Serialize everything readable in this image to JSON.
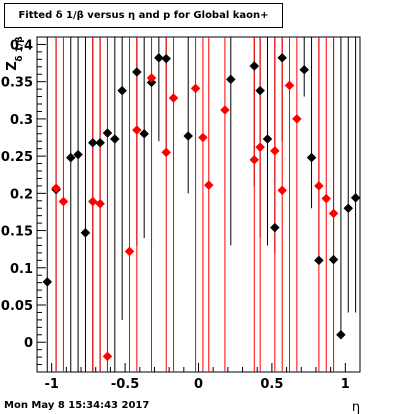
{
  "chart_data": {
    "type": "scatter",
    "title": "Fitted δ 1/β versus η and p for Global kaon+",
    "xlabel": "η",
    "ylabel": "Z_{δ 1/β}",
    "xlim": [
      -1.1,
      1.1
    ],
    "ylim": [
      -0.04,
      0.41
    ],
    "x_ticks": [
      "-1",
      "-0.5",
      "0",
      "0.5",
      "1"
    ],
    "y_ticks": [
      "0",
      "0.05",
      "0.1",
      "0.15",
      "0.2",
      "0.25",
      "0.3",
      "0.35",
      "0.4"
    ],
    "grid": false,
    "series": [
      {
        "color": "#000000",
        "points": [
          {
            "x": -1.03,
            "y": 0.081,
            "err_lo": 0.121,
            "err_hi": 0.329
          },
          {
            "x": -0.97,
            "y": 0.205,
            "err_lo": 0.245,
            "err_hi": 0.205
          },
          {
            "x": -0.87,
            "y": 0.248,
            "err_lo": 0.288,
            "err_hi": 0.162
          },
          {
            "x": -0.82,
            "y": 0.252,
            "err_lo": 0.292,
            "err_hi": 0.158
          },
          {
            "x": -0.77,
            "y": 0.147,
            "err_lo": 0.187,
            "err_hi": 0.263
          },
          {
            "x": -0.72,
            "y": 0.268,
            "err_lo": 0.308,
            "err_hi": 0.142
          },
          {
            "x": -0.67,
            "y": 0.268,
            "err_lo": 0.308,
            "err_hi": 0.142
          },
          {
            "x": -0.62,
            "y": 0.281,
            "err_lo": 0.321,
            "err_hi": 0.129
          },
          {
            "x": -0.57,
            "y": 0.273,
            "err_lo": 0.313,
            "err_hi": 0.137
          },
          {
            "x": -0.52,
            "y": 0.338,
            "err_lo": 0.308,
            "err_hi": 0.072
          },
          {
            "x": -0.42,
            "y": 0.363,
            "err_lo": 0.233,
            "err_hi": 0.047
          },
          {
            "x": -0.37,
            "y": 0.28,
            "err_lo": 0.14,
            "err_hi": 0.13
          },
          {
            "x": -0.32,
            "y": 0.349,
            "err_lo": 0.219,
            "err_hi": 0.061
          },
          {
            "x": -0.27,
            "y": 0.382,
            "err_lo": 0.112,
            "err_hi": 0.028
          },
          {
            "x": -0.22,
            "y": 0.381,
            "err_lo": 0.121,
            "err_hi": 0.029
          },
          {
            "x": -0.07,
            "y": 0.277,
            "err_lo": 0.077,
            "err_hi": 0.133
          },
          {
            "x": 0.22,
            "y": 0.353,
            "err_lo": 0.223,
            "err_hi": 0.057
          },
          {
            "x": 0.38,
            "y": 0.371,
            "err_lo": 0.161,
            "err_hi": 0.039
          },
          {
            "x": 0.42,
            "y": 0.338,
            "err_lo": 0.198,
            "err_hi": 0.072
          },
          {
            "x": 0.47,
            "y": 0.273,
            "err_lo": 0.143,
            "err_hi": 0.137
          },
          {
            "x": 0.52,
            "y": 0.154,
            "err_lo": 0.034,
            "err_hi": 0.256
          },
          {
            "x": 0.57,
            "y": 0.382,
            "err_lo": 0.112,
            "err_hi": 0.028
          },
          {
            "x": 0.72,
            "y": 0.366,
            "err_lo": 0.036,
            "err_hi": 0.044
          },
          {
            "x": 0.77,
            "y": 0.248,
            "err_lo": 0.068,
            "err_hi": 0.162
          },
          {
            "x": 0.82,
            "y": 0.11,
            "err_lo": 0.0,
            "err_hi": 0.3
          },
          {
            "x": 0.92,
            "y": 0.111,
            "err_lo": 0.0,
            "err_hi": 0.299
          },
          {
            "x": 0.97,
            "y": 0.01,
            "err_lo": 0.0,
            "err_hi": 0.4
          },
          {
            "x": 1.02,
            "y": 0.18,
            "err_lo": 0.14,
            "err_hi": 0.23
          },
          {
            "x": 1.07,
            "y": 0.194,
            "err_lo": 0.154,
            "err_hi": 0.216
          }
        ]
      },
      {
        "color": "#ff0000",
        "points": [
          {
            "x": -0.97,
            "y": 0.207,
            "err_lo": 0.247,
            "err_hi": 0.203
          },
          {
            "x": -0.92,
            "y": 0.189,
            "err_lo": 0.229,
            "err_hi": 0.221
          },
          {
            "x": -0.72,
            "y": 0.189,
            "err_lo": 0.229,
            "err_hi": 0.221
          },
          {
            "x": -0.67,
            "y": 0.186,
            "err_lo": 0.226,
            "err_hi": 0.224
          },
          {
            "x": -0.62,
            "y": -0.019,
            "err_lo": 0.021,
            "err_hi": 0.429
          },
          {
            "x": -0.47,
            "y": 0.122,
            "err_lo": 0.162,
            "err_hi": 0.288
          },
          {
            "x": -0.42,
            "y": 0.285,
            "err_lo": 0.325,
            "err_hi": 0.125
          },
          {
            "x": -0.32,
            "y": 0.355,
            "err_lo": 0.395,
            "err_hi": 0.055
          },
          {
            "x": -0.22,
            "y": 0.255,
            "err_lo": 0.295,
            "err_hi": 0.155
          },
          {
            "x": -0.17,
            "y": 0.328,
            "err_lo": 0.368,
            "err_hi": 0.082
          },
          {
            "x": -0.02,
            "y": 0.341,
            "err_lo": 0.381,
            "err_hi": 0.069
          },
          {
            "x": 0.03,
            "y": 0.275,
            "err_lo": 0.315,
            "err_hi": 0.135
          },
          {
            "x": 0.07,
            "y": 0.211,
            "err_lo": 0.251,
            "err_hi": 0.199
          },
          {
            "x": 0.18,
            "y": 0.312,
            "err_lo": 0.352,
            "err_hi": 0.098
          },
          {
            "x": 0.38,
            "y": 0.245,
            "err_lo": 0.285,
            "err_hi": 0.165
          },
          {
            "x": 0.42,
            "y": 0.262,
            "err_lo": 0.302,
            "err_hi": 0.148
          },
          {
            "x": 0.52,
            "y": 0.257,
            "err_lo": 0.297,
            "err_hi": 0.153
          },
          {
            "x": 0.57,
            "y": 0.204,
            "err_lo": 0.244,
            "err_hi": 0.206
          },
          {
            "x": 0.62,
            "y": 0.345,
            "err_lo": 0.385,
            "err_hi": 0.065
          },
          {
            "x": 0.67,
            "y": 0.3,
            "err_lo": 0.34,
            "err_hi": 0.11
          },
          {
            "x": 0.82,
            "y": 0.21,
            "err_lo": 0.25,
            "err_hi": 0.2
          },
          {
            "x": 0.87,
            "y": 0.193,
            "err_lo": 0.233,
            "err_hi": 0.217
          },
          {
            "x": 0.92,
            "y": 0.173,
            "err_lo": 0.213,
            "err_hi": 0.237
          }
        ]
      }
    ]
  },
  "footer": {
    "date": "Mon May  8 15:34:43 2017"
  }
}
